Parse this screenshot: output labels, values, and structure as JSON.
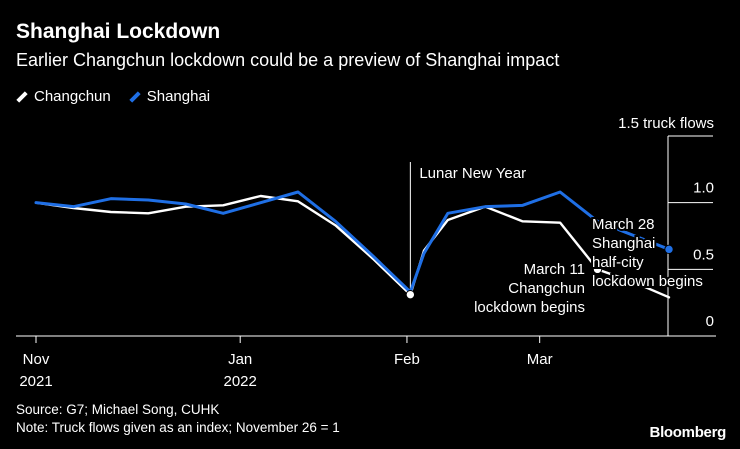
{
  "title": "Shanghai Lockdown",
  "subtitle": "Earlier Changchun lockdown could be a preview of Shanghai impact",
  "legend": [
    {
      "label": "Changchun",
      "color": "#ffffff"
    },
    {
      "label": "Shanghai",
      "color": "#1f6fe5"
    }
  ],
  "footer": {
    "source": "Source: G7; Michael Song, CUHK",
    "note": "Note: Truck flows given as an index; November 26 = 1",
    "brand": "Bloomberg"
  },
  "chart_data": {
    "type": "line",
    "title": "Shanghai Lockdown",
    "ylabel": "truck flows",
    "ylim": [
      0,
      1.5
    ],
    "yticks": [
      {
        "value": 0,
        "label": "0"
      },
      {
        "value": 0.5,
        "label": "0.5"
      },
      {
        "value": 1.0,
        "label": "1.0"
      },
      {
        "value": 1.5,
        "label": "1.5 truck flows"
      }
    ],
    "xlim": [
      0,
      9.3
    ],
    "xticks": [
      {
        "x": 0,
        "label": [
          "Nov",
          "2021"
        ]
      },
      {
        "x": 3,
        "label": [
          "Jan",
          "2022"
        ]
      },
      {
        "x": 5.45,
        "label": [
          "Feb"
        ]
      },
      {
        "x": 7.4,
        "label": [
          "Mar"
        ]
      }
    ],
    "series": [
      {
        "name": "Changchun",
        "color": "#ffffff",
        "x": [
          0,
          0.55,
          1.1,
          1.65,
          2.2,
          2.75,
          3.3,
          3.85,
          4.4,
          4.95,
          5.5,
          5.7,
          6.05,
          6.6,
          7.15,
          7.7,
          8.25,
          8.8,
          9.3
        ],
        "values": [
          1.0,
          0.96,
          0.93,
          0.92,
          0.97,
          0.98,
          1.05,
          1.01,
          0.83,
          0.58,
          0.31,
          0.64,
          0.87,
          0.97,
          0.86,
          0.85,
          0.5,
          0.4,
          0.29
        ]
      },
      {
        "name": "Shanghai",
        "color": "#1f6fe5",
        "x": [
          0,
          0.55,
          1.1,
          1.65,
          2.2,
          2.75,
          3.3,
          3.85,
          4.4,
          4.95,
          5.5,
          5.7,
          6.05,
          6.6,
          7.15,
          7.7,
          8.25,
          8.8,
          9.3
        ],
        "values": [
          1.0,
          0.97,
          1.03,
          1.02,
          0.99,
          0.92,
          1.0,
          1.08,
          0.86,
          0.6,
          0.33,
          0.62,
          0.92,
          0.97,
          0.98,
          1.08,
          0.86,
          0.75,
          0.65
        ]
      }
    ],
    "markers": [
      {
        "series": "Changchun",
        "x": 5.5,
        "value": 0.31
      },
      {
        "series": "Changchun",
        "x": 8.25,
        "value": 0.5
      },
      {
        "series": "Shanghai",
        "x": 9.3,
        "value": 0.65
      }
    ],
    "annotations": [
      {
        "text": "Lunar New Year",
        "x": 5.5
      },
      {
        "text": "March 11\nChangchun\nlockdown begins",
        "x": 8.25,
        "value": 0.5
      },
      {
        "text": "March 28\nShanghai\nhalf-city\nlockdown begins",
        "x": 9.3,
        "value": 0.65
      }
    ]
  }
}
